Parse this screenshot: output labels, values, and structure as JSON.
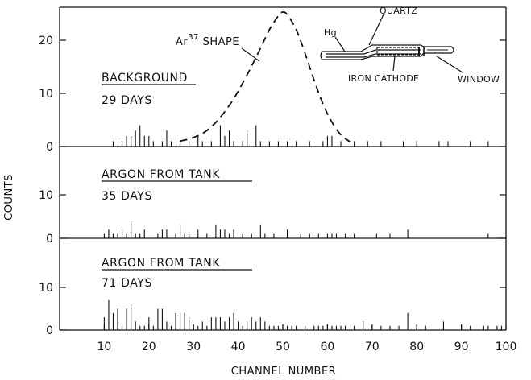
{
  "chart_data": {
    "type": "bar",
    "xlabel": "CHANNEL NUMBER",
    "ylabel": "COUNTS",
    "xlim": [
      0,
      100
    ],
    "x_ticks": [
      "10",
      "20",
      "30",
      "40",
      "50",
      "60",
      "70",
      "80",
      "90",
      "100"
    ],
    "panels": [
      {
        "id": "background",
        "title": "BACKGROUND",
        "subtitle": "29 DAYS",
        "ylim": [
          0,
          25
        ],
        "y_ticks": [
          "0",
          "10",
          "20"
        ],
        "bars": [
          {
            "x": 12,
            "y": 1
          },
          {
            "x": 14,
            "y": 1
          },
          {
            "x": 15,
            "y": 2
          },
          {
            "x": 16,
            "y": 2
          },
          {
            "x": 17,
            "y": 3
          },
          {
            "x": 18,
            "y": 4
          },
          {
            "x": 19,
            "y": 2
          },
          {
            "x": 20,
            "y": 2
          },
          {
            "x": 21,
            "y": 1
          },
          {
            "x": 23,
            "y": 1
          },
          {
            "x": 24,
            "y": 3
          },
          {
            "x": 25,
            "y": 1
          },
          {
            "x": 27,
            "y": 1
          },
          {
            "x": 29,
            "y": 1
          },
          {
            "x": 31,
            "y": 2
          },
          {
            "x": 32,
            "y": 1
          },
          {
            "x": 34,
            "y": 1
          },
          {
            "x": 36,
            "y": 4
          },
          {
            "x": 37,
            "y": 2
          },
          {
            "x": 38,
            "y": 3
          },
          {
            "x": 39,
            "y": 1
          },
          {
            "x": 41,
            "y": 1
          },
          {
            "x": 42,
            "y": 3
          },
          {
            "x": 44,
            "y": 4
          },
          {
            "x": 45,
            "y": 1
          },
          {
            "x": 47,
            "y": 1
          },
          {
            "x": 49,
            "y": 1
          },
          {
            "x": 51,
            "y": 1
          },
          {
            "x": 53,
            "y": 1
          },
          {
            "x": 56,
            "y": 1
          },
          {
            "x": 59,
            "y": 1
          },
          {
            "x": 60,
            "y": 2
          },
          {
            "x": 61,
            "y": 2
          },
          {
            "x": 63,
            "y": 1
          },
          {
            "x": 66,
            "y": 1
          },
          {
            "x": 69,
            "y": 1
          },
          {
            "x": 72,
            "y": 1
          },
          {
            "x": 77,
            "y": 1
          },
          {
            "x": 80,
            "y": 1
          },
          {
            "x": 85,
            "y": 1
          },
          {
            "x": 87,
            "y": 1
          },
          {
            "x": 92,
            "y": 1
          },
          {
            "x": 96,
            "y": 1
          }
        ],
        "shape_curve": {
          "label": "Ar",
          "label_sup": "37",
          "label_suffix": " SHAPE",
          "points": [
            [
              27,
              1
            ],
            [
              30,
              1.7
            ],
            [
              33,
              3
            ],
            [
              36,
              5.5
            ],
            [
              39,
              9
            ],
            [
              42,
              13.5
            ],
            [
              45,
              18.5
            ],
            [
              47,
              22
            ],
            [
              49,
              24.6
            ],
            [
              50,
              25.3
            ],
            [
              51,
              24.8
            ],
            [
              53,
              22
            ],
            [
              55,
              17.5
            ],
            [
              57,
              12.5
            ],
            [
              59,
              8
            ],
            [
              61,
              4.6
            ],
            [
              63,
              2.2
            ],
            [
              65,
              0.9
            ]
          ]
        },
        "inset": {
          "label_hg": "Hg",
          "label_quartz": "QUARTZ",
          "label_window": "WINDOW",
          "label_cathode": "IRON CATHODE"
        }
      },
      {
        "id": "argon-35",
        "title": "ARGON FROM TANK",
        "subtitle": "35 DAYS",
        "ylim": [
          0,
          15
        ],
        "y_ticks": [
          "0",
          "10"
        ],
        "bars": [
          {
            "x": 10,
            "y": 1
          },
          {
            "x": 11,
            "y": 2
          },
          {
            "x": 12,
            "y": 1
          },
          {
            "x": 13,
            "y": 1
          },
          {
            "x": 14,
            "y": 2
          },
          {
            "x": 15,
            "y": 1
          },
          {
            "x": 16,
            "y": 4
          },
          {
            "x": 17,
            "y": 1
          },
          {
            "x": 18,
            "y": 1
          },
          {
            "x": 19,
            "y": 2
          },
          {
            "x": 22,
            "y": 1
          },
          {
            "x": 23,
            "y": 2
          },
          {
            "x": 24,
            "y": 2
          },
          {
            "x": 26,
            "y": 1
          },
          {
            "x": 27,
            "y": 3
          },
          {
            "x": 28,
            "y": 1
          },
          {
            "x": 29,
            "y": 1
          },
          {
            "x": 31,
            "y": 2
          },
          {
            "x": 33,
            "y": 1
          },
          {
            "x": 35,
            "y": 3
          },
          {
            "x": 36,
            "y": 2
          },
          {
            "x": 37,
            "y": 2
          },
          {
            "x": 38,
            "y": 1
          },
          {
            "x": 39,
            "y": 2
          },
          {
            "x": 41,
            "y": 1
          },
          {
            "x": 43,
            "y": 1
          },
          {
            "x": 45,
            "y": 3
          },
          {
            "x": 46,
            "y": 1
          },
          {
            "x": 48,
            "y": 1
          },
          {
            "x": 51,
            "y": 2
          },
          {
            "x": 54,
            "y": 1
          },
          {
            "x": 56,
            "y": 1
          },
          {
            "x": 58,
            "y": 1
          },
          {
            "x": 60,
            "y": 1
          },
          {
            "x": 61,
            "y": 1
          },
          {
            "x": 62,
            "y": 1
          },
          {
            "x": 64,
            "y": 1
          },
          {
            "x": 66,
            "y": 1
          },
          {
            "x": 71,
            "y": 1
          },
          {
            "x": 74,
            "y": 1
          },
          {
            "x": 78,
            "y": 2
          },
          {
            "x": 96,
            "y": 1
          }
        ]
      },
      {
        "id": "argon-71",
        "title": "ARGON FROM TANK",
        "subtitle": "71 DAYS",
        "ylim": [
          0,
          15
        ],
        "y_ticks": [
          "0",
          "10"
        ],
        "bars": [
          {
            "x": 10,
            "y": 3
          },
          {
            "x": 11,
            "y": 7
          },
          {
            "x": 12,
            "y": 4
          },
          {
            "x": 13,
            "y": 5
          },
          {
            "x": 14,
            "y": 1
          },
          {
            "x": 15,
            "y": 5
          },
          {
            "x": 16,
            "y": 6
          },
          {
            "x": 17,
            "y": 2
          },
          {
            "x": 18,
            "y": 1
          },
          {
            "x": 19,
            "y": 1
          },
          {
            "x": 20,
            "y": 3
          },
          {
            "x": 21,
            "y": 1
          },
          {
            "x": 22,
            "y": 5
          },
          {
            "x": 23,
            "y": 5
          },
          {
            "x": 24,
            "y": 2
          },
          {
            "x": 25,
            "y": 1
          },
          {
            "x": 26,
            "y": 4
          },
          {
            "x": 27,
            "y": 4
          },
          {
            "x": 28,
            "y": 4
          },
          {
            "x": 29,
            "y": 3
          },
          {
            "x": 30,
            "y": 1
          },
          {
            "x": 31,
            "y": 1
          },
          {
            "x": 32,
            "y": 2
          },
          {
            "x": 33,
            "y": 1
          },
          {
            "x": 34,
            "y": 3
          },
          {
            "x": 35,
            "y": 3
          },
          {
            "x": 36,
            "y": 3
          },
          {
            "x": 37,
            "y": 2
          },
          {
            "x": 38,
            "y": 3
          },
          {
            "x": 39,
            "y": 4
          },
          {
            "x": 40,
            "y": 2
          },
          {
            "x": 41,
            "y": 1
          },
          {
            "x": 42,
            "y": 2
          },
          {
            "x": 43,
            "y": 3
          },
          {
            "x": 44,
            "y": 2
          },
          {
            "x": 45,
            "y": 3
          },
          {
            "x": 46,
            "y": 2
          },
          {
            "x": 47,
            "y": 1
          },
          {
            "x": 48,
            "y": 1
          },
          {
            "x": 49,
            "y": 1
          },
          {
            "x": 50,
            "y": 1
          },
          {
            "x": 51,
            "y": 1
          },
          {
            "x": 52,
            "y": 1
          },
          {
            "x": 53,
            "y": 1
          },
          {
            "x": 55,
            "y": 1
          },
          {
            "x": 57,
            "y": 1
          },
          {
            "x": 58,
            "y": 1
          },
          {
            "x": 59,
            "y": 1
          },
          {
            "x": 60,
            "y": 1
          },
          {
            "x": 61,
            "y": 1
          },
          {
            "x": 62,
            "y": 1
          },
          {
            "x": 63,
            "y": 1
          },
          {
            "x": 64,
            "y": 1
          },
          {
            "x": 66,
            "y": 1
          },
          {
            "x": 68,
            "y": 2
          },
          {
            "x": 70,
            "y": 1
          },
          {
            "x": 72,
            "y": 1
          },
          {
            "x": 74,
            "y": 1
          },
          {
            "x": 76,
            "y": 1
          },
          {
            "x": 78,
            "y": 4
          },
          {
            "x": 80,
            "y": 1
          },
          {
            "x": 82,
            "y": 1
          },
          {
            "x": 86,
            "y": 2
          },
          {
            "x": 90,
            "y": 1
          },
          {
            "x": 92,
            "y": 1
          },
          {
            "x": 95,
            "y": 1
          },
          {
            "x": 96,
            "y": 1
          },
          {
            "x": 98,
            "y": 1
          },
          {
            "x": 99,
            "y": 1
          }
        ]
      }
    ]
  }
}
